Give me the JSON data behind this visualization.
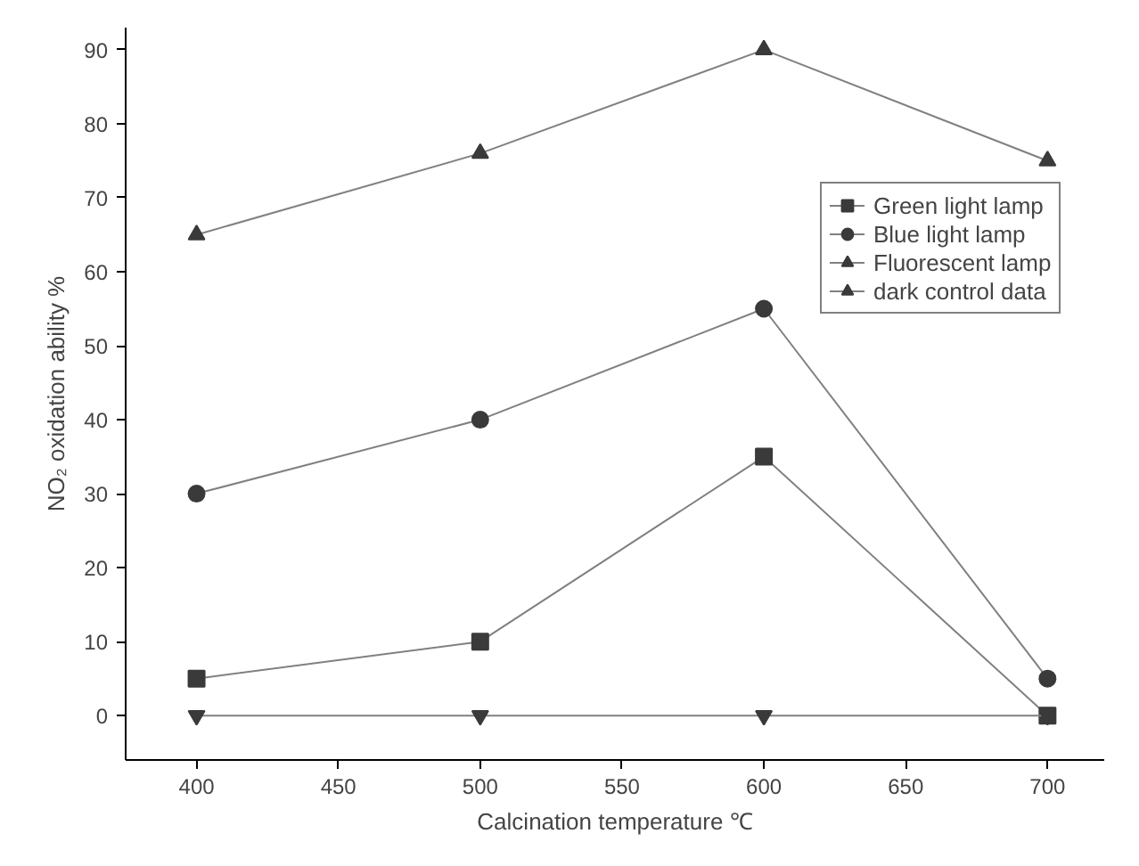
{
  "chart_data": {
    "type": "line",
    "xlabel": "Calcination temperature ℃",
    "ylabel": "NO₂ oxidation ability %",
    "x": [
      400,
      500,
      600,
      700
    ],
    "series": [
      {
        "name": "Green light lamp",
        "color": "#3a3a3a",
        "marker": "square",
        "values": [
          5,
          10,
          35,
          0
        ]
      },
      {
        "name": "Blue light lamp",
        "color": "#3a3a3a",
        "marker": "circle",
        "values": [
          30,
          40,
          55,
          5
        ]
      },
      {
        "name": "Fluorescent lamp",
        "color": "#3a3a3a",
        "marker": "triangle",
        "values": [
          65,
          76,
          90,
          75
        ]
      },
      {
        "name": "dark control data",
        "color": "#3a3a3a",
        "marker": "triangle",
        "values": [
          0,
          0,
          0,
          0
        ]
      }
    ],
    "xlim": [
      375,
      720
    ],
    "ylim": [
      -6,
      93
    ],
    "xticks": [
      400,
      450,
      500,
      550,
      600,
      650,
      700
    ],
    "yticks": [
      0,
      10,
      20,
      30,
      40,
      50,
      60,
      70,
      80,
      90
    ],
    "grid": false,
    "legend": "right",
    "line_style": "solid"
  }
}
